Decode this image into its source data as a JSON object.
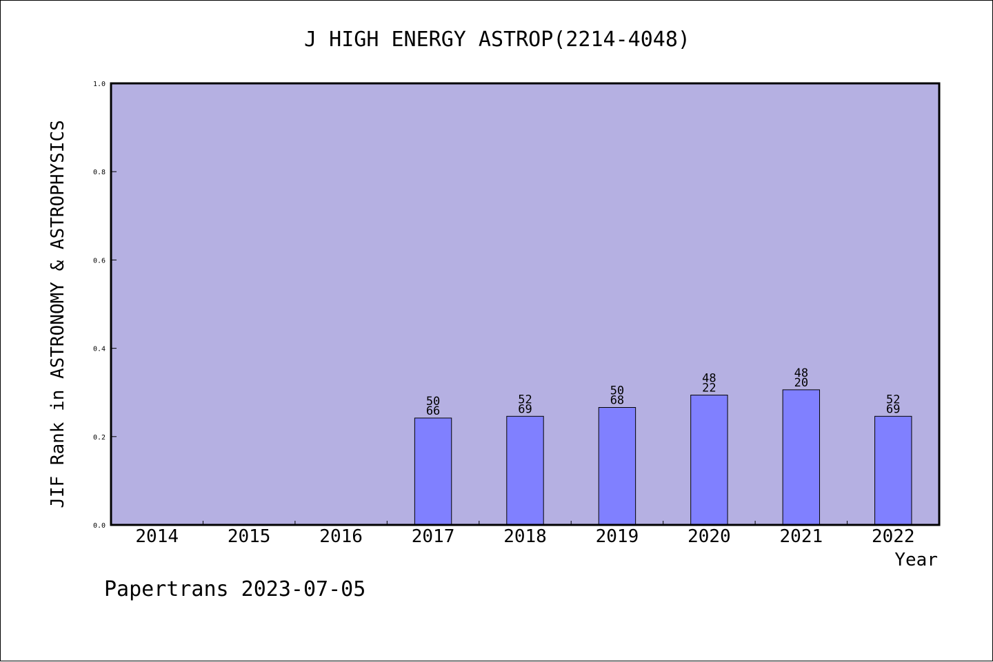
{
  "chart_data": {
    "type": "bar",
    "title": "J HIGH ENERGY ASTROP(2214-4048)",
    "ylabel": "JIF Rank in ASTRONOMY & ASTROPHYSICS",
    "xlabel": "Year",
    "categories": [
      "2014",
      "2015",
      "2016",
      "2017",
      "2018",
      "2019",
      "2020",
      "2021",
      "2022"
    ],
    "values": [
      null,
      null,
      null,
      0.242,
      0.246,
      0.266,
      0.294,
      0.306,
      0.246
    ],
    "labels_top": [
      "",
      "",
      "",
      "50",
      "52",
      "50",
      "48",
      "48",
      "52"
    ],
    "labels_bottom": [
      "",
      "",
      "",
      "66",
      "69",
      "68",
      "22",
      "20",
      "69"
    ],
    "ylim": [
      0,
      1.0
    ],
    "yticks": [
      "0.0",
      "0.2",
      "0.4",
      "0.6",
      "0.8",
      "1.0"
    ],
    "grid": false,
    "colors": {
      "plot_background": "#b5b0e2",
      "bar": "#8080ff",
      "axis": "#000000"
    }
  },
  "footer": "Papertrans 2023-07-05"
}
